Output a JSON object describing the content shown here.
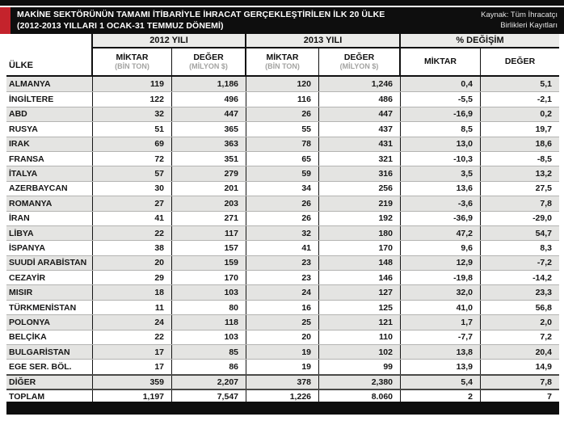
{
  "header": {
    "title_line1": "MAKİNE SEKTÖRÜNÜN TAMAMI İTİBARİYLE İHRACAT GERÇEKLEŞTİRİLEN İLK 20 ÜLKE",
    "title_line2": "(2012-2013 YILLARI 1 OCAK-31 TEMMUZ DÖNEMİ)",
    "source_line1": "Kaynak: Tüm İhracatçı",
    "source_line2": "Birlikleri Kayıtları"
  },
  "colors": {
    "accent_red": "#c4232c",
    "bar_black": "#0e0e0e",
    "row_alt_gray": "#e4e4e2",
    "header_group_gray": "#ebebe9"
  },
  "table": {
    "country_header": "ÜLKE",
    "groups": [
      {
        "label": "2012 YILI"
      },
      {
        "label": "2013 YILI"
      },
      {
        "label": "% DEĞİŞİM"
      }
    ],
    "subheaders": [
      {
        "label": "MİKTAR",
        "unit": "(BİN TON)"
      },
      {
        "label": "DEĞER",
        "unit": "(MİLYON $)"
      },
      {
        "label": "MİKTAR",
        "unit": "(BİN TON)"
      },
      {
        "label": "DEĞER",
        "unit": "(MİLYON $)"
      },
      {
        "label": "MİKTAR",
        "unit": ""
      },
      {
        "label": "DEĞER",
        "unit": ""
      }
    ],
    "rows": [
      {
        "country": "ALMANYA",
        "m2012": "119",
        "d2012": "1,186",
        "m2013": "120",
        "d2013": "1,246",
        "pm": "0,4",
        "pd": "5,1",
        "strong": false
      },
      {
        "country": "İNGİLTERE",
        "m2012": "122",
        "d2012": "496",
        "m2013": "116",
        "d2013": "486",
        "pm": "-5,5",
        "pd": "-2,1",
        "strong": false
      },
      {
        "country": "ABD",
        "m2012": "32",
        "d2012": "447",
        "m2013": "26",
        "d2013": "447",
        "pm": "-16,9",
        "pd": "0,2",
        "strong": false
      },
      {
        "country": "RUSYA",
        "m2012": "51",
        "d2012": "365",
        "m2013": "55",
        "d2013": "437",
        "pm": "8,5",
        "pd": "19,7",
        "strong": false
      },
      {
        "country": "IRAK",
        "m2012": "69",
        "d2012": "363",
        "m2013": "78",
        "d2013": "431",
        "pm": "13,0",
        "pd": "18,6",
        "strong": false
      },
      {
        "country": "FRANSA",
        "m2012": "72",
        "d2012": "351",
        "m2013": "65",
        "d2013": "321",
        "pm": "-10,3",
        "pd": "-8,5",
        "strong": false
      },
      {
        "country": "İTALYA",
        "m2012": "57",
        "d2012": "279",
        "m2013": "59",
        "d2013": "316",
        "pm": "3,5",
        "pd": "13,2",
        "strong": false
      },
      {
        "country": "AZERBAYCAN",
        "m2012": "30",
        "d2012": "201",
        "m2013": "34",
        "d2013": "256",
        "pm": "13,6",
        "pd": "27,5",
        "strong": false
      },
      {
        "country": "ROMANYA",
        "m2012": "27",
        "d2012": "203",
        "m2013": "26",
        "d2013": "219",
        "pm": "-3,6",
        "pd": "7,8",
        "strong": false
      },
      {
        "country": "İRAN",
        "m2012": "41",
        "d2012": "271",
        "m2013": "26",
        "d2013": "192",
        "pm": "-36,9",
        "pd": "-29,0",
        "strong": false
      },
      {
        "country": "LİBYA",
        "m2012": "22",
        "d2012": "117",
        "m2013": "32",
        "d2013": "180",
        "pm": "47,2",
        "pd": "54,7",
        "strong": false
      },
      {
        "country": "İSPANYA",
        "m2012": "38",
        "d2012": "157",
        "m2013": "41",
        "d2013": "170",
        "pm": "9,6",
        "pd": "8,3",
        "strong": false
      },
      {
        "country": "SUUDİ ARABİSTAN",
        "m2012": "20",
        "d2012": "159",
        "m2013": "23",
        "d2013": "148",
        "pm": "12,9",
        "pd": "-7,2",
        "strong": false
      },
      {
        "country": "CEZAYİR",
        "m2012": "29",
        "d2012": "170",
        "m2013": "23",
        "d2013": "146",
        "pm": "-19,8",
        "pd": "-14,2",
        "strong": false
      },
      {
        "country": "MISIR",
        "m2012": "18",
        "d2012": "103",
        "m2013": "24",
        "d2013": "127",
        "pm": "32,0",
        "pd": "23,3",
        "strong": false
      },
      {
        "country": "TÜRKMENİSTAN",
        "m2012": "11",
        "d2012": "80",
        "m2013": "16",
        "d2013": "125",
        "pm": "41,0",
        "pd": "56,8",
        "strong": false
      },
      {
        "country": "POLONYA",
        "m2012": "24",
        "d2012": "118",
        "m2013": "25",
        "d2013": "121",
        "pm": "1,7",
        "pd": "2,0",
        "strong": false
      },
      {
        "country": "BELÇİKA",
        "m2012": "22",
        "d2012": "103",
        "m2013": "20",
        "d2013": "110",
        "pm": "-7,7",
        "pd": "7,2",
        "strong": false
      },
      {
        "country": "BULGARİSTAN",
        "m2012": "17",
        "d2012": "85",
        "m2013": "19",
        "d2013": "102",
        "pm": "13,8",
        "pd": "20,4",
        "strong": false
      },
      {
        "country": "EGE SER. BÖL.",
        "m2012": "17",
        "d2012": "86",
        "m2013": "19",
        "d2013": "99",
        "pm": "13,9",
        "pd": "14,9",
        "strong": false
      },
      {
        "country": "DİĞER",
        "m2012": "359",
        "d2012": "2,207",
        "m2013": "378",
        "d2013": "2,380",
        "pm": "5,4",
        "pd": "7,8",
        "strong": true
      },
      {
        "country": "TOPLAM",
        "m2012": "1,197",
        "d2012": "7,547",
        "m2013": "1,226",
        "d2013": "8.060",
        "pm": "2",
        "pd": "7",
        "strong": true
      }
    ]
  }
}
